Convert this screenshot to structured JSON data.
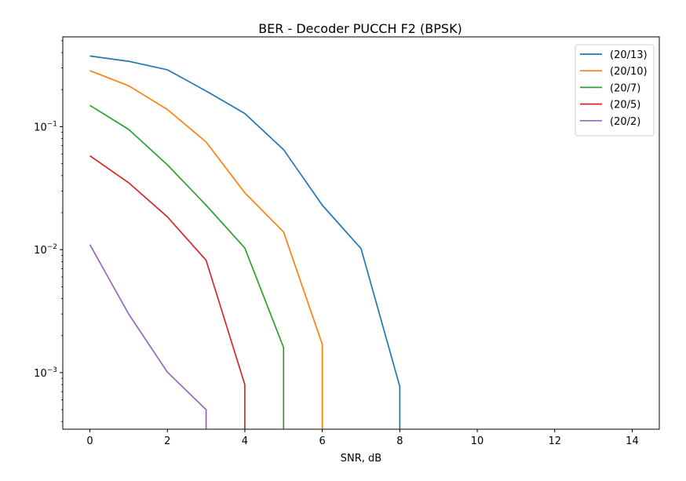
{
  "chart_data": {
    "type": "line",
    "title": "BER - Decoder PUCCH F2 (BPSK)",
    "xlabel": "SNR, dB",
    "ylabel": "",
    "xlim": [
      -0.7,
      14.7
    ],
    "ylim_log10": [
      -3.46,
      -0.27
    ],
    "y_scale": "log",
    "x_ticks": [
      0,
      2,
      4,
      6,
      8,
      10,
      12,
      14
    ],
    "x_tick_labels": [
      "0",
      "2",
      "4",
      "6",
      "8",
      "10",
      "12",
      "14"
    ],
    "y_major_ticks": [
      {
        "value": 0.1,
        "base": "10",
        "exp": "−1"
      },
      {
        "value": 0.01,
        "base": "10",
        "exp": "−2"
      },
      {
        "value": 0.001,
        "base": "10",
        "exp": "−3"
      }
    ],
    "grid": false,
    "legend_position": "upper right",
    "series": [
      {
        "name": "(20/13)",
        "color": "#1f77b4",
        "x": [
          0,
          1,
          2,
          3,
          4,
          5,
          6,
          7,
          8,
          8
        ],
        "y": [
          0.375,
          0.34,
          0.29,
          0.195,
          0.128,
          0.065,
          0.023,
          0.0102,
          0.00077,
          0.00035
        ]
      },
      {
        "name": "(20/10)",
        "color": "#ff7f0e",
        "x": [
          0,
          1,
          2,
          3,
          4,
          5,
          6,
          6
        ],
        "y": [
          0.285,
          0.215,
          0.138,
          0.075,
          0.029,
          0.0139,
          0.0017,
          0.00035
        ]
      },
      {
        "name": "(20/7)",
        "color": "#2ca02c",
        "x": [
          0,
          1,
          2,
          3,
          4,
          5,
          5
        ],
        "y": [
          0.149,
          0.095,
          0.049,
          0.023,
          0.0103,
          0.0016,
          0.00035
        ]
      },
      {
        "name": "(20/5)",
        "color": "#d62728",
        "x": [
          0,
          1,
          2,
          3,
          4,
          4
        ],
        "y": [
          0.058,
          0.035,
          0.0185,
          0.0082,
          0.0008,
          0.00035
        ]
      },
      {
        "name": "(20/2)",
        "color": "#9467bd",
        "x": [
          0,
          1,
          2,
          3,
          3
        ],
        "y": [
          0.011,
          0.003,
          0.00101,
          0.0005,
          0.00035
        ]
      }
    ]
  }
}
